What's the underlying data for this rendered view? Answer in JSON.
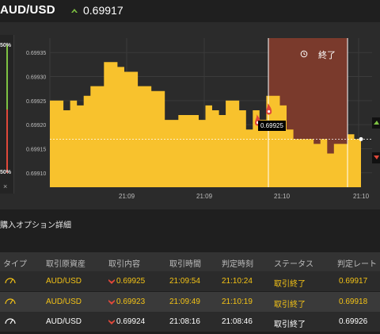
{
  "header": {
    "pair": "AUD/USD",
    "rate": "0.69917"
  },
  "gauge": {
    "top_pct": "50%",
    "bottom_pct": "50%",
    "close": "×"
  },
  "chart_data": {
    "type": "area",
    "y_ticks": [
      "0.69935",
      "0.69930",
      "0.69925",
      "0.69920",
      "0.69915",
      "0.69910"
    ],
    "x_ticks": [
      "21:09",
      "21:09",
      "21:10",
      "21:10"
    ],
    "ylim": [
      0.69907,
      0.69938
    ],
    "current_rate": 0.69917,
    "entry_rate_label": "0.69925",
    "end_label": "終了",
    "series": [
      {
        "values": [
          0.69925,
          0.69925,
          0.69923,
          0.69925,
          0.69924,
          0.69926,
          0.69928,
          0.69928,
          0.69933,
          0.69933,
          0.69932,
          0.69931,
          0.69931,
          0.69928,
          0.69928,
          0.69927,
          0.69927,
          0.69921,
          0.69921,
          0.69922,
          0.69922,
          0.69922,
          0.69921,
          0.69924,
          0.69923,
          0.69922,
          0.69925,
          0.69925,
          0.69923,
          0.69919,
          0.69923,
          0.69921,
          0.69926,
          0.69926,
          0.69924,
          0.69919,
          0.69917,
          0.69917,
          0.69917,
          0.69916,
          0.69917,
          0.69914,
          0.69916,
          0.69916,
          0.69918,
          0.69917,
          0.69915
        ]
      }
    ]
  },
  "details": {
    "title": "購入オプション詳細"
  },
  "table": {
    "headers": [
      "タイプ",
      "取引原資産",
      "取引内容",
      "取引時間",
      "判定時刻",
      "ステータス",
      "判定レート"
    ],
    "rows": [
      {
        "asset": "AUD/USD",
        "content": "0.69925",
        "time": "21:09:54",
        "judge": "21:10:24",
        "status": "取引終了",
        "rate": "0.69917"
      },
      {
        "asset": "AUD/USD",
        "content": "0.69923",
        "time": "21:09:49",
        "judge": "21:10:19",
        "status": "取引終了",
        "rate": "0.69918"
      },
      {
        "asset": "AUD/USD",
        "content": "0.69924",
        "time": "21:08:16",
        "judge": "21:08:46",
        "status": "取引終了",
        "rate": "0.69926"
      }
    ]
  },
  "colors": {
    "accent": "#f4c316",
    "area": "#f8c22d",
    "expiry_zone": "#7a3a2c",
    "down": "#e0483a",
    "up": "#7ec242",
    "row_alt": "#3a3a3a"
  }
}
